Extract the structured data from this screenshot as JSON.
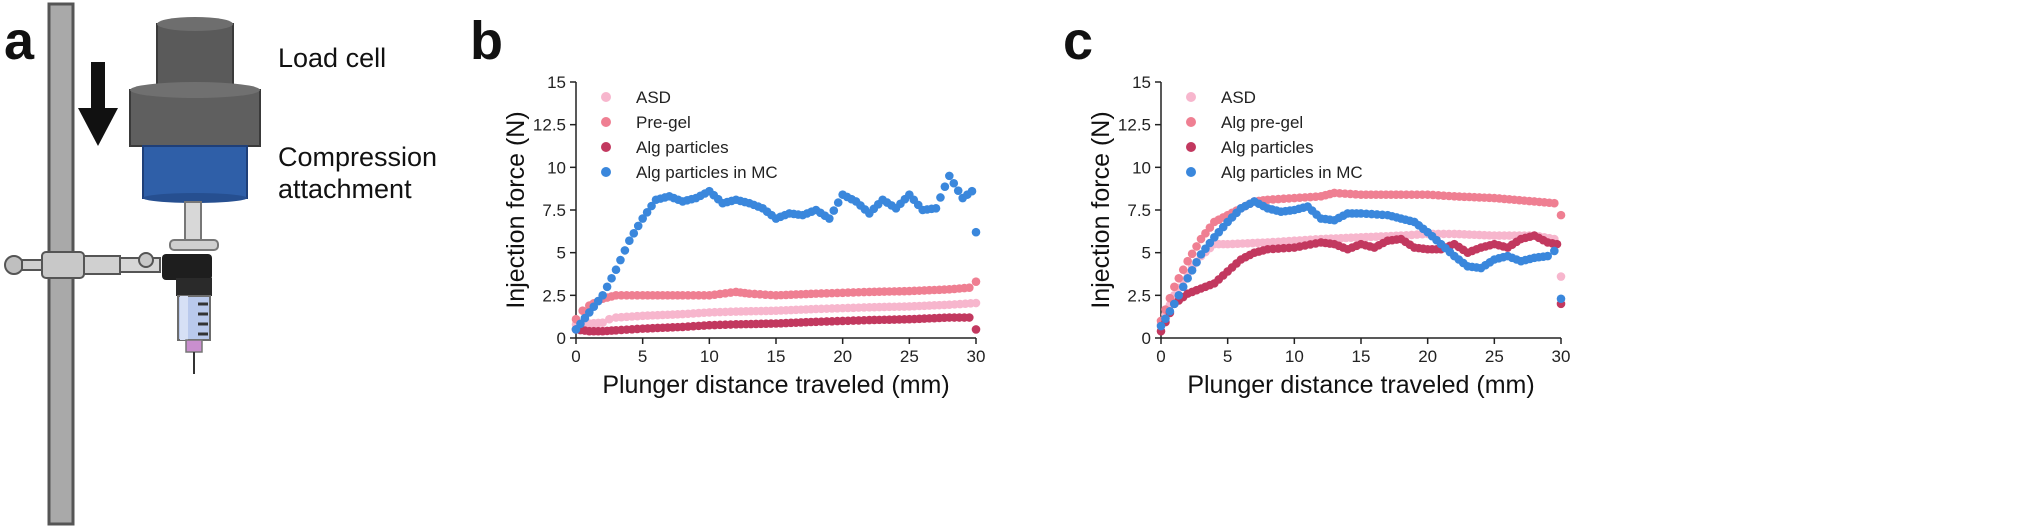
{
  "panels": {
    "a": "a",
    "b": "b",
    "c": "c"
  },
  "apparatus": {
    "load_cell_label": "Load cell",
    "compression_label_line1": "Compression",
    "compression_label_line2": "attachment"
  },
  "colors": {
    "asd": "#f7b6cd",
    "pregel": "#ef7f92",
    "alg_particles": "#c2385f",
    "alg_mc": "#3a87dc"
  },
  "chart_data": [
    {
      "type": "scatter",
      "panel": "b",
      "xlabel": "Plunger distance traveled (mm)",
      "ylabel": "Injection force (N)",
      "xlim": [
        0,
        30
      ],
      "ylim": [
        0,
        15
      ],
      "xticks": [
        "0",
        "5",
        "10",
        "15",
        "20",
        "25",
        "30"
      ],
      "yticks": [
        "0",
        "2.5",
        "5",
        "7.5",
        "10",
        "12.5",
        "15"
      ],
      "legend_position": "top-left",
      "series": [
        {
          "name": "ASD",
          "color_key": "asd",
          "points": [
            [
              0,
              0.8
            ],
            [
              1,
              0.85
            ],
            [
              2,
              0.9
            ],
            [
              2.5,
              1.1
            ],
            [
              3,
              1.2
            ],
            [
              5,
              1.3
            ],
            [
              8,
              1.4
            ],
            [
              10,
              1.5
            ],
            [
              12,
              1.55
            ],
            [
              15,
              1.6
            ],
            [
              18,
              1.7
            ],
            [
              20,
              1.75
            ],
            [
              22,
              1.8
            ],
            [
              25,
              1.85
            ],
            [
              28,
              1.95
            ],
            [
              30,
              2.05
            ]
          ]
        },
        {
          "name": "Pre-gel",
          "color_key": "pregel",
          "points": [
            [
              0,
              1.1
            ],
            [
              0.5,
              1.6
            ],
            [
              1,
              1.9
            ],
            [
              2,
              2.3
            ],
            [
              3,
              2.5
            ],
            [
              5,
              2.5
            ],
            [
              8,
              2.5
            ],
            [
              10,
              2.5
            ],
            [
              12,
              2.7
            ],
            [
              13,
              2.6
            ],
            [
              15,
              2.5
            ],
            [
              18,
              2.6
            ],
            [
              20,
              2.65
            ],
            [
              22,
              2.7
            ],
            [
              25,
              2.75
            ],
            [
              28,
              2.85
            ],
            [
              29.5,
              2.95
            ],
            [
              30,
              3.3
            ]
          ]
        },
        {
          "name": "Alg particles",
          "color_key": "alg_particles",
          "points": [
            [
              0,
              0.5
            ],
            [
              1,
              0.4
            ],
            [
              2,
              0.4
            ],
            [
              3,
              0.45
            ],
            [
              5,
              0.55
            ],
            [
              8,
              0.65
            ],
            [
              10,
              0.75
            ],
            [
              12,
              0.8
            ],
            [
              15,
              0.85
            ],
            [
              18,
              0.95
            ],
            [
              20,
              1.0
            ],
            [
              22,
              1.05
            ],
            [
              25,
              1.1
            ],
            [
              28,
              1.2
            ],
            [
              29.5,
              1.2
            ],
            [
              30,
              0.5
            ]
          ]
        },
        {
          "name": "Alg particles in MC",
          "color_key": "alg_mc",
          "points": [
            [
              0,
              0.5
            ],
            [
              1,
              1.5
            ],
            [
              2,
              2.5
            ],
            [
              3,
              4.0
            ],
            [
              4,
              5.7
            ],
            [
              5,
              7.0
            ],
            [
              6,
              8.1
            ],
            [
              7,
              8.3
            ],
            [
              8,
              8.0
            ],
            [
              9,
              8.2
            ],
            [
              10,
              8.6
            ],
            [
              11,
              7.9
            ],
            [
              12,
              8.1
            ],
            [
              13,
              7.9
            ],
            [
              14,
              7.6
            ],
            [
              15,
              7.0
            ],
            [
              16,
              7.3
            ],
            [
              17,
              7.2
            ],
            [
              18,
              7.5
            ],
            [
              19,
              7.0
            ],
            [
              20,
              8.4
            ],
            [
              21,
              8.0
            ],
            [
              22,
              7.3
            ],
            [
              23,
              8.1
            ],
            [
              24,
              7.6
            ],
            [
              25,
              8.4
            ],
            [
              26,
              7.5
            ],
            [
              27,
              7.6
            ],
            [
              28,
              9.5
            ],
            [
              29,
              8.2
            ],
            [
              29.7,
              8.6
            ],
            [
              30,
              6.2
            ]
          ]
        }
      ]
    },
    {
      "type": "scatter",
      "panel": "c",
      "xlabel": "Plunger distance traveled (mm)",
      "ylabel": "Injection force (N)",
      "xlim": [
        0,
        30
      ],
      "ylim": [
        0,
        15
      ],
      "xticks": [
        "0",
        "5",
        "10",
        "15",
        "20",
        "25",
        "30"
      ],
      "yticks": [
        "0",
        "2.5",
        "5",
        "7.5",
        "10",
        "12.5",
        "15"
      ],
      "legend_position": "top-left",
      "series": [
        {
          "name": "ASD",
          "color_key": "asd",
          "points": [
            [
              0,
              0.8
            ],
            [
              1,
              2.5
            ],
            [
              2,
              3.8
            ],
            [
              3,
              4.8
            ],
            [
              4,
              5.5
            ],
            [
              5,
              5.5
            ],
            [
              8,
              5.6
            ],
            [
              10,
              5.7
            ],
            [
              12,
              5.8
            ],
            [
              15,
              5.9
            ],
            [
              18,
              6.0
            ],
            [
              20,
              6.1
            ],
            [
              22,
              6.1
            ],
            [
              25,
              6.0
            ],
            [
              28,
              6.0
            ],
            [
              29.5,
              5.8
            ],
            [
              30,
              3.6
            ]
          ]
        },
        {
          "name": "Alg pre-gel",
          "color_key": "pregel",
          "points": [
            [
              0,
              1.0
            ],
            [
              1,
              3.0
            ],
            [
              2,
              4.5
            ],
            [
              3,
              5.8
            ],
            [
              4,
              6.8
            ],
            [
              5,
              7.2
            ],
            [
              6,
              7.6
            ],
            [
              7,
              8.0
            ],
            [
              8,
              8.1
            ],
            [
              10,
              8.2
            ],
            [
              12,
              8.3
            ],
            [
              13,
              8.5
            ],
            [
              15,
              8.4
            ],
            [
              18,
              8.4
            ],
            [
              20,
              8.4
            ],
            [
              22,
              8.3
            ],
            [
              25,
              8.2
            ],
            [
              28,
              8.0
            ],
            [
              29.5,
              7.9
            ],
            [
              30,
              7.2
            ]
          ]
        },
        {
          "name": "Alg particles",
          "color_key": "alg_particles",
          "points": [
            [
              0,
              0.4
            ],
            [
              1,
              2.0
            ],
            [
              2,
              2.6
            ],
            [
              3,
              2.9
            ],
            [
              4,
              3.2
            ],
            [
              5,
              3.9
            ],
            [
              6,
              4.6
            ],
            [
              7,
              5.0
            ],
            [
              8,
              5.2
            ],
            [
              10,
              5.3
            ],
            [
              12,
              5.6
            ],
            [
              13,
              5.5
            ],
            [
              14,
              5.2
            ],
            [
              15,
              5.5
            ],
            [
              16,
              5.3
            ],
            [
              17,
              5.7
            ],
            [
              18,
              5.8
            ],
            [
              19,
              5.3
            ],
            [
              20,
              5.2
            ],
            [
              21,
              5.2
            ],
            [
              22,
              5.5
            ],
            [
              23,
              5.0
            ],
            [
              24,
              5.3
            ],
            [
              25,
              5.5
            ],
            [
              26,
              5.3
            ],
            [
              27,
              5.8
            ],
            [
              28,
              6.0
            ],
            [
              29,
              5.6
            ],
            [
              29.7,
              5.5
            ],
            [
              30,
              2.0
            ]
          ]
        },
        {
          "name": "Alg particles in MC",
          "color_key": "alg_mc",
          "points": [
            [
              0,
              0.7
            ],
            [
              1,
              2.0
            ],
            [
              2,
              3.5
            ],
            [
              3,
              4.9
            ],
            [
              4,
              5.9
            ],
            [
              5,
              6.8
            ],
            [
              6,
              7.6
            ],
            [
              7,
              8.0
            ],
            [
              8,
              7.6
            ],
            [
              9,
              7.4
            ],
            [
              10,
              7.5
            ],
            [
              11,
              7.7
            ],
            [
              12,
              7.0
            ],
            [
              13,
              6.9
            ],
            [
              14,
              7.3
            ],
            [
              15,
              7.3
            ],
            [
              17,
              7.2
            ],
            [
              18,
              7.0
            ],
            [
              19,
              6.8
            ],
            [
              20,
              6.2
            ],
            [
              21,
              5.5
            ],
            [
              22,
              4.8
            ],
            [
              23,
              4.2
            ],
            [
              24,
              4.1
            ],
            [
              25,
              4.6
            ],
            [
              26,
              4.8
            ],
            [
              27,
              4.5
            ],
            [
              28,
              4.7
            ],
            [
              29,
              4.8
            ],
            [
              29.5,
              5.1
            ],
            [
              30,
              2.3
            ]
          ]
        }
      ]
    }
  ]
}
